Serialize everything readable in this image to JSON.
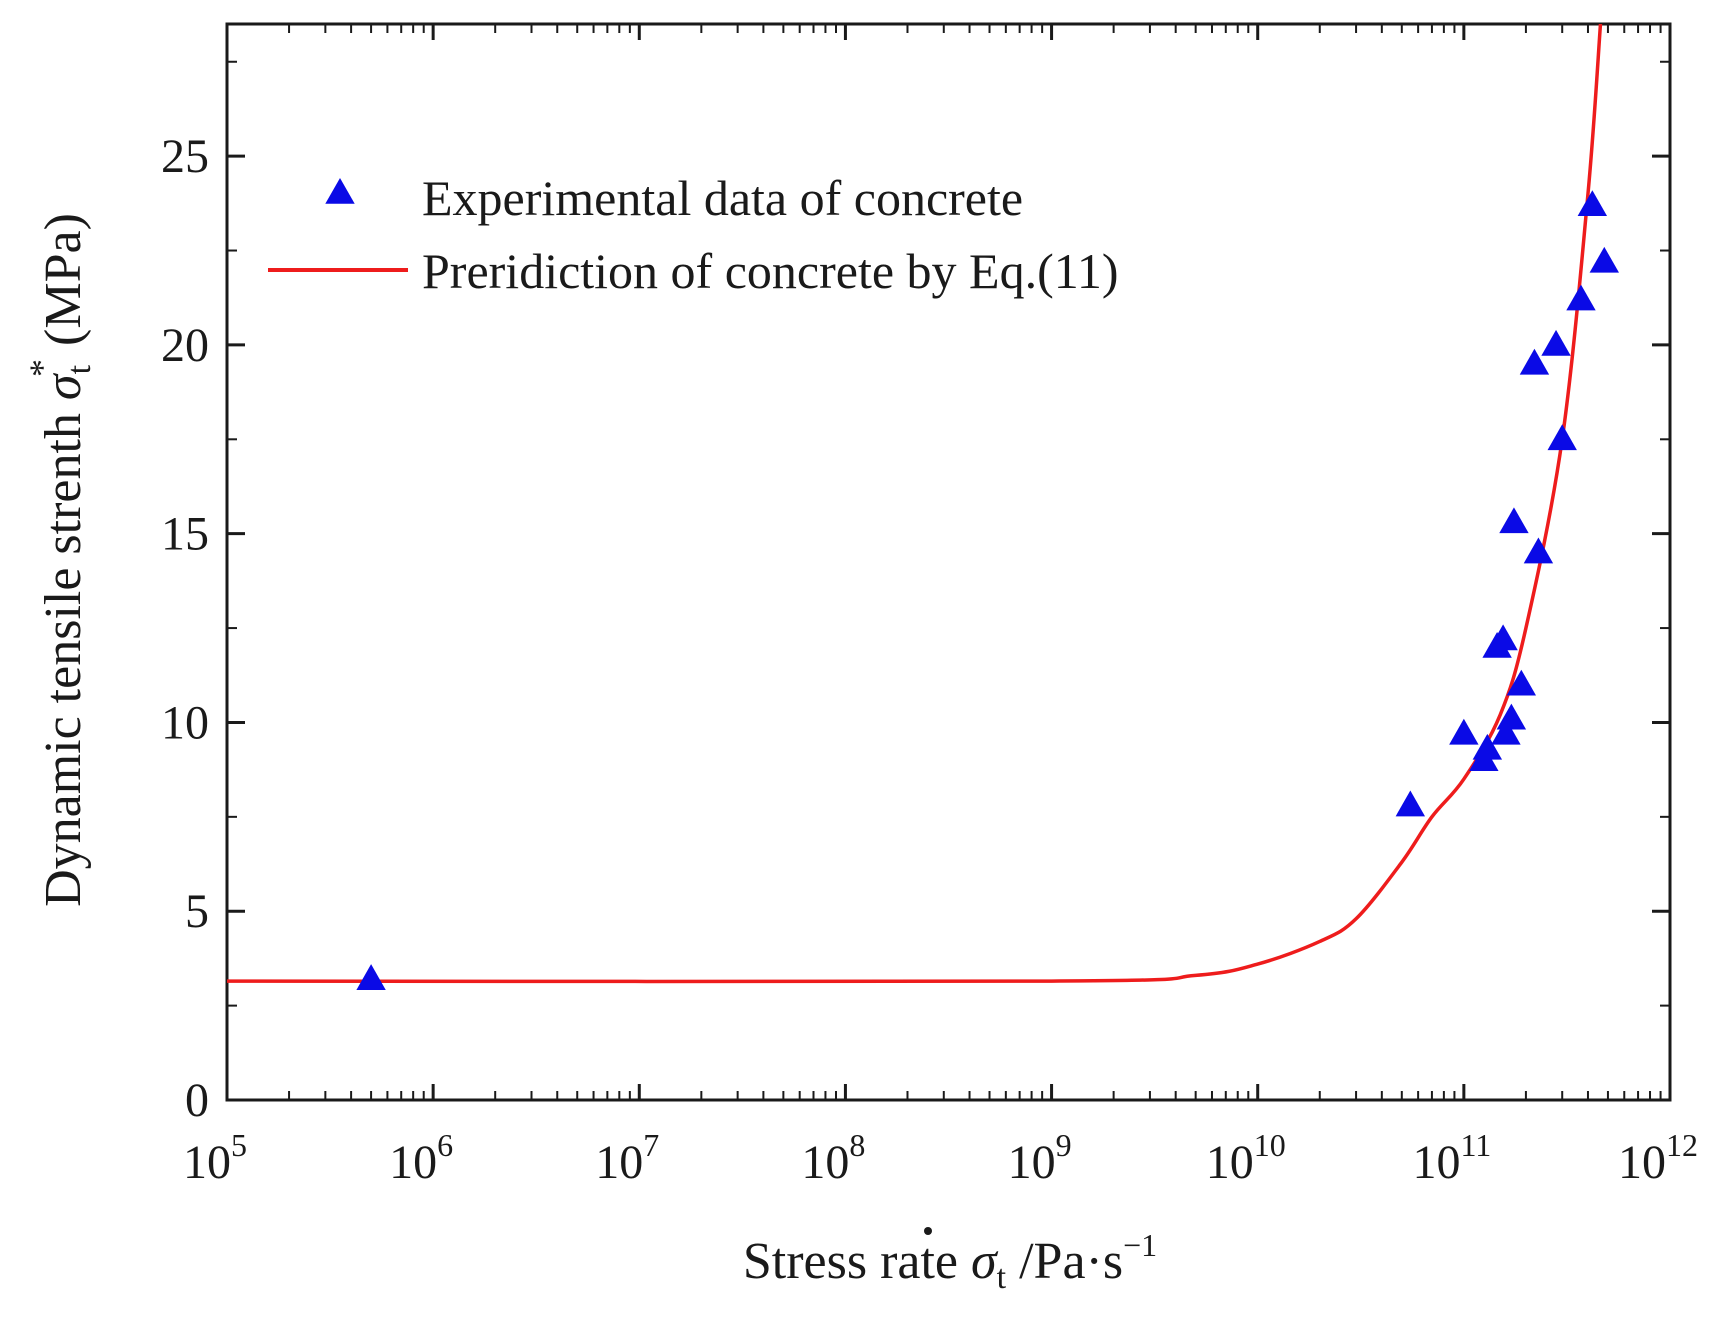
{
  "chart_data": {
    "type": "scatter",
    "title": "",
    "xlabel": {
      "prefix": "Stress rate ",
      "symbol": "σ",
      "symbol_sub": "t",
      "suffix": " /Pa·s",
      "suffix_sup": "−1"
    },
    "ylabel": {
      "prefix": "Dynamic tensile strenth ",
      "symbol": "σ",
      "symbol_sub": "t",
      "symbol_sup": "*",
      "suffix": " (MPa)"
    },
    "x_scale": "log10",
    "xlim_exp": [
      5,
      12
    ],
    "ylim": [
      0,
      28.5
    ],
    "x_tick_exponents": [
      5,
      6,
      7,
      8,
      9,
      10,
      11,
      12
    ],
    "x_tick_base": "10",
    "y_ticks": [
      0,
      5,
      10,
      15,
      20,
      25
    ],
    "legend": {
      "position": "top-left",
      "entries": [
        {
          "label": "Experimental data of concrete",
          "marker": "triangle",
          "color": "#0a0ae6"
        },
        {
          "label": "Preridiction of concrete by Eq.(11)",
          "marker": "line",
          "color": "#ee1c1c"
        }
      ]
    },
    "series": [
      {
        "name": "Experimental data of concrete",
        "kind": "scatter",
        "color": "#0a0ae6",
        "points": [
          [
            500000.0,
            3.2
          ],
          [
            55000000000.0,
            7.8
          ],
          [
            100000000000.0,
            9.7
          ],
          [
            125000000000.0,
            9.0
          ],
          [
            130000000000.0,
            9.3
          ],
          [
            145000000000.0,
            12.0
          ],
          [
            155000000000.0,
            12.2
          ],
          [
            160000000000.0,
            9.7
          ],
          [
            170000000000.0,
            10.1
          ],
          [
            175000000000.0,
            15.3
          ],
          [
            190000000000.0,
            11.0
          ],
          [
            220000000000.0,
            19.5
          ],
          [
            230000000000.0,
            14.5
          ],
          [
            280000000000.0,
            20.0
          ],
          [
            300000000000.0,
            17.5
          ],
          [
            370000000000.0,
            21.2
          ],
          [
            420000000000.0,
            23.7
          ],
          [
            480000000000.0,
            22.2
          ]
        ]
      },
      {
        "name": "Preridiction of concrete by Eq.(11)",
        "kind": "line",
        "color": "#ee1c1c",
        "points": [
          [
            100000.0,
            3.15
          ],
          [
            1000000000.0,
            3.15
          ],
          [
            5000000000.0,
            3.3
          ],
          [
            10000000000.0,
            3.6
          ],
          [
            20000000000.0,
            4.2
          ],
          [
            30000000000.0,
            4.8
          ],
          [
            50000000000.0,
            6.3
          ],
          [
            70000000000.0,
            7.5
          ],
          [
            100000000000.0,
            8.5
          ],
          [
            150000000000.0,
            10.2
          ],
          [
            200000000000.0,
            12.5
          ],
          [
            300000000000.0,
            17.5
          ],
          [
            400000000000.0,
            24.0
          ],
          [
            460000000000.0,
            28.5
          ]
        ]
      }
    ]
  }
}
